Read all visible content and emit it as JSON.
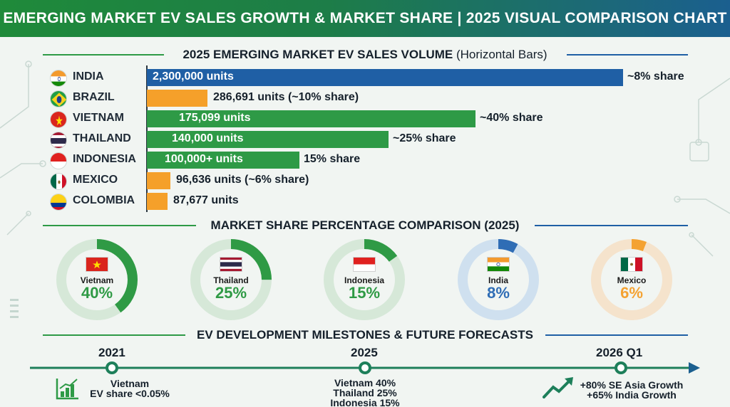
{
  "title": "EMERGING MARKET EV SALES GROWTH & MARKET SHARE | 2025 VISUAL COMPARISON CHART",
  "sections": {
    "bars_title": "2025 EMERGING MARKET EV SALES VOLUME",
    "bars_subtitle": "(Horizontal Bars)",
    "share_title": "MARKET SHARE PERCENTAGE COMPARISON (2025)",
    "timeline_title": "EV DEVELOPMENT MILESTONES & FUTURE FORECASTS"
  },
  "colors": {
    "blue_bar": "#1f5fa5",
    "green_bar": "#2e9a46",
    "orange_bar": "#f5a02a",
    "donut_green": "#2f9a45",
    "donut_green_track": "#d6e8d8",
    "donut_blue": "#2f6db5",
    "donut_blue_track": "#cfe0ef",
    "donut_orange": "#f4a232",
    "donut_orange_track": "#f5e3cc",
    "timeline": "#1d7f5a"
  },
  "chart_data": [
    {
      "type": "bar",
      "orientation": "horizontal",
      "title": "2025 EMERGING MARKET EV SALES VOLUME (Horizontal Bars)",
      "categories": [
        "INDIA",
        "BRAZIL",
        "VIETNAM",
        "THAILAND",
        "INDONESIA",
        "MEXICO",
        "COLOMBIA"
      ],
      "values": [
        2300000,
        286691,
        175099,
        140000,
        100000,
        96636,
        87677
      ],
      "bars": [
        {
          "country": "INDIA",
          "flag": "india-flag-icon",
          "value_label": "2,300,000 units",
          "share_label": "~8% share",
          "color": "blue",
          "bar_fraction": 1.0
        },
        {
          "country": "BRAZIL",
          "flag": "brazil-flag-icon",
          "value_label": "286,691 units (~10% share)",
          "share_label": "",
          "color": "orange",
          "bar_fraction": 0.127
        },
        {
          "country": "VIETNAM",
          "flag": "vietnam-flag-icon",
          "value_label": "175,099 units",
          "share_label": "~40% share",
          "color": "green",
          "bar_fraction": 0.69
        },
        {
          "country": "THAILAND",
          "flag": "thailand-flag-icon",
          "value_label": "140,000 units",
          "share_label": "~25% share",
          "color": "green",
          "bar_fraction": 0.508
        },
        {
          "country": "INDONESIA",
          "flag": "indonesia-flag-icon",
          "value_label": "100,000+ units",
          "share_label": "15% share",
          "color": "green",
          "bar_fraction": 0.32
        },
        {
          "country": "MEXICO",
          "flag": "mexico-flag-icon",
          "value_label": "96,636 units (~6% share)",
          "share_label": "",
          "color": "orange",
          "bar_fraction": 0.049
        },
        {
          "country": "COLOMBIA",
          "flag": "colombia-flag-icon",
          "value_label": "87,677 units",
          "share_label": "",
          "color": "orange",
          "bar_fraction": 0.044
        }
      ]
    },
    {
      "type": "pie",
      "style": "donut",
      "title": "MARKET SHARE PERCENTAGE COMPARISON (2025)",
      "items": [
        {
          "name": "Vietnam",
          "flag": "vietnam-flag-icon",
          "value": 40,
          "label": "40%",
          "palette": "green"
        },
        {
          "name": "Thailand",
          "flag": "thailand-flag-icon",
          "value": 25,
          "label": "25%",
          "palette": "green"
        },
        {
          "name": "Indonesia",
          "flag": "indonesia-flag-icon",
          "value": 15,
          "label": "15%",
          "palette": "green"
        },
        {
          "name": "India",
          "flag": "india-flag-icon",
          "value": 8,
          "label": "8%",
          "palette": "blue"
        },
        {
          "name": "Mexico",
          "flag": "mexico-flag-icon",
          "value": 6,
          "label": "6%",
          "palette": "orange"
        }
      ]
    }
  ],
  "timeline": {
    "points": [
      {
        "year": "2021",
        "lines": [
          "Vietnam",
          "EV share <0.05%"
        ],
        "icon": "bar-chart-icon"
      },
      {
        "year": "2025",
        "lines": [
          "Vietnam 40%",
          "Thailand 25%",
          "Indonesia 15%"
        ],
        "icon": ""
      },
      {
        "year": "2026 Q1",
        "lines": [
          "+80% SE Asia Growth",
          "+65% India Growth"
        ],
        "icon": "trend-up-arrow-icon"
      }
    ]
  }
}
